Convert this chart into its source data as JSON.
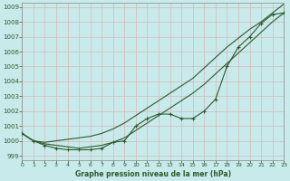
{
  "title": "Graphe pression niveau de la mer (hPa)",
  "bg_color": "#c8eaea",
  "grid_color": "#d4b8b8",
  "line_color": "#2d5a2d",
  "xlim": [
    0,
    23
  ],
  "ylim": [
    998.7,
    1009.3
  ],
  "yticks": [
    999,
    1000,
    1001,
    1002,
    1003,
    1004,
    1005,
    1006,
    1007,
    1008,
    1009
  ],
  "xticks": [
    0,
    1,
    2,
    3,
    4,
    5,
    6,
    7,
    8,
    9,
    10,
    11,
    12,
    13,
    14,
    15,
    16,
    17,
    18,
    19,
    20,
    21,
    22,
    23
  ],
  "x": [
    0,
    1,
    2,
    3,
    4,
    5,
    6,
    7,
    8,
    9,
    10,
    11,
    12,
    13,
    14,
    15,
    16,
    17,
    18,
    19,
    20,
    21,
    22,
    23
  ],
  "line_marked": [
    1000.5,
    1000.0,
    999.7,
    999.5,
    999.4,
    999.4,
    999.4,
    999.5,
    999.9,
    1000.0,
    1001.0,
    1001.5,
    1001.8,
    1001.8,
    1001.5,
    1001.5,
    1002.0,
    1002.8,
    1005.0,
    1006.3,
    1007.0,
    1007.9,
    1008.5,
    1008.6
  ],
  "line_upper": [
    1000.5,
    1000.0,
    999.9,
    1000.0,
    1000.1,
    1000.2,
    1000.3,
    1000.5,
    1000.8,
    1001.2,
    1001.7,
    1002.2,
    1002.7,
    1003.2,
    1003.7,
    1004.2,
    1004.9,
    1005.6,
    1006.3,
    1006.9,
    1007.5,
    1008.0,
    1008.6,
    1009.2
  ],
  "line_lower": [
    1000.5,
    1000.0,
    999.8,
    999.7,
    999.6,
    999.5,
    999.6,
    999.7,
    999.9,
    1000.2,
    1000.7,
    1001.2,
    1001.7,
    1002.2,
    1002.7,
    1003.2,
    1003.8,
    1004.5,
    1005.2,
    1005.9,
    1006.6,
    1007.3,
    1008.0,
    1008.6
  ]
}
